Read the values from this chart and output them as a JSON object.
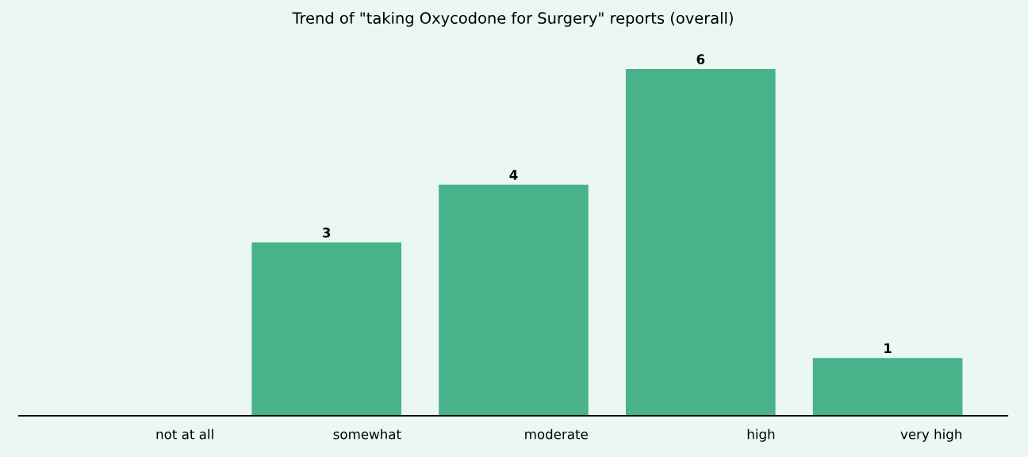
{
  "chart_data": {
    "type": "bar",
    "title": "Trend of \"taking Oxycodone for Surgery\" reports (overall)",
    "categories": [
      "not at all",
      "somewhat",
      "moderate",
      "high",
      "very high"
    ],
    "values": [
      0,
      3,
      4,
      6,
      1
    ],
    "value_labels": [
      null,
      "3",
      "4",
      "6",
      "1"
    ],
    "color": "#48b38a",
    "grid": false,
    "legend": false
  }
}
